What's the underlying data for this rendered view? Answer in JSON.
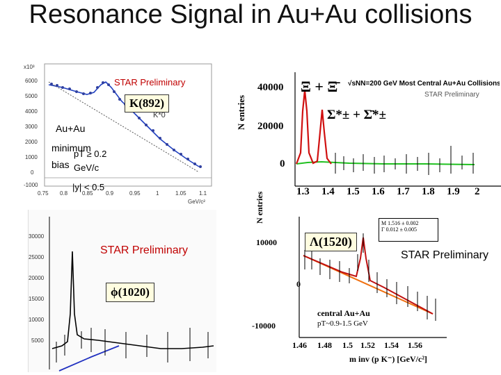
{
  "title": "Resonance Signal in Au+Au collisions",
  "panel_k892": {
    "star_preliminary": "STAR Preliminary",
    "particle": "K(892)",
    "k0_label": "K*0",
    "collision": "Au+Au",
    "bias": "minimum bias",
    "pt_cut": "pT ≥ 0.2 GeV/c",
    "y_cut": "|y| < 0.5",
    "y_scale": "x10³",
    "y_ticks": [
      "6000",
      "5000",
      "4000",
      "3000",
      "2000",
      "1000",
      "0",
      "-1000"
    ],
    "x_ticks": [
      "0.75",
      "0.8",
      "0.85",
      "0.9",
      "0.95",
      "1",
      "1.05",
      "1.1"
    ],
    "x_unit": "GeV/c²"
  },
  "panel_xi": {
    "label_xi": "Ξ + Ξ̄",
    "energy": "√sNN=200 GeV Most Central Au+Au Collisions",
    "star_preliminary": "STAR Preliminary",
    "sigma": "Σ*± + Σ̄*±",
    "y_axis": "N entries",
    "y_ticks": [
      "40000",
      "20000",
      "0"
    ],
    "x_ticks": [
      "1.3",
      "1.4",
      "1.5",
      "1.6",
      "1.7",
      "1.8",
      "1.9",
      "2"
    ]
  },
  "panel_phi": {
    "star_preliminary": "STAR Preliminary",
    "particle": "ϕ(1020)",
    "y_ticks": [
      "30000",
      "25000",
      "20000",
      "15000",
      "10000",
      "5000"
    ]
  },
  "panel_lambda": {
    "particle": "Λ(1520)",
    "star_preliminary": "STAR Preliminary",
    "y_axis": "N entries",
    "fit_box": [
      "M    1.516 ± 0.002",
      "Γ    0.012 ± 0.005"
    ],
    "collision": "central Au+Au",
    "pt_range": "pT~0.9-1.5 GeV",
    "y_ticks": [
      "10000",
      "0",
      "-10000"
    ],
    "x_ticks": [
      "1.46",
      "1.48",
      "1.5",
      "1.52",
      "1.54",
      "1.56"
    ],
    "x_axis": "m inv (p K⁻) [GeV/c²]"
  }
}
